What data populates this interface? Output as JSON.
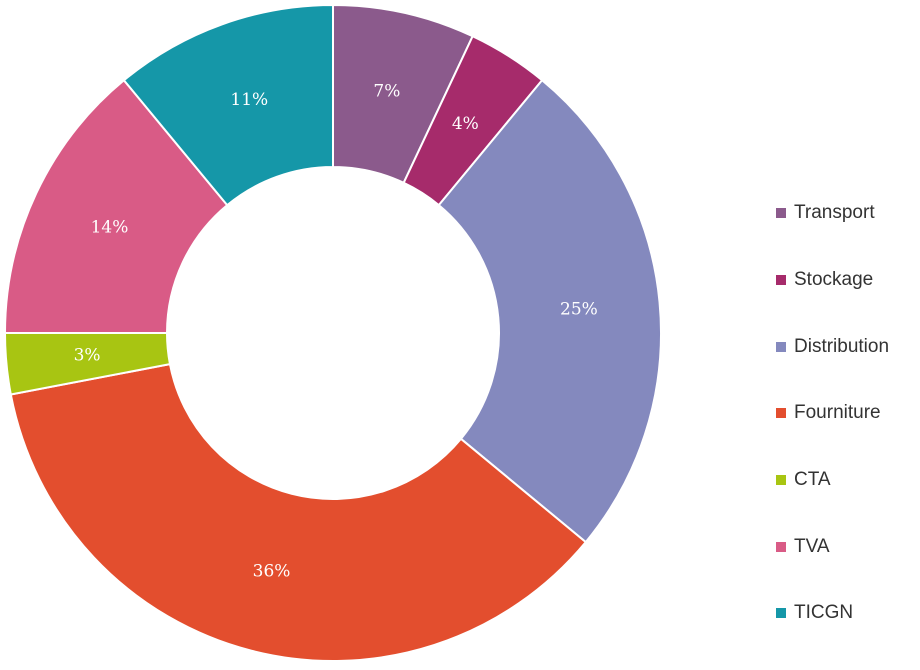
{
  "chart_data": {
    "type": "pie",
    "donut": true,
    "legend_position": "right",
    "slices": [
      {
        "name": "Transport",
        "value": 7,
        "label": "7%",
        "color": "#8B5A8C"
      },
      {
        "name": "Stockage",
        "value": 4,
        "label": "4%",
        "color": "#A62B6B"
      },
      {
        "name": "Distribution",
        "value": 25,
        "label": "25%",
        "color": "#8489BE"
      },
      {
        "name": "Fourniture",
        "value": 36,
        "label": "36%",
        "color": "#E34E2E"
      },
      {
        "name": "CTA",
        "value": 3,
        "label": "3%",
        "color": "#A8C512"
      },
      {
        "name": "TVA",
        "value": 14,
        "label": "14%",
        "color": "#D95B86"
      },
      {
        "name": "TICGN",
        "value": 11,
        "label": "11%",
        "color": "#1597A8"
      }
    ]
  }
}
